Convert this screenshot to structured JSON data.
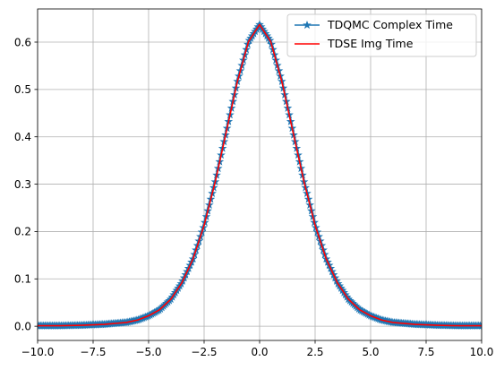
{
  "chart_data": {
    "type": "line",
    "title": "",
    "xlabel": "",
    "ylabel": "",
    "xlim": [
      -10,
      10
    ],
    "ylim": [
      -0.03,
      0.67
    ],
    "grid": true,
    "legend_position": "top-right",
    "x_ticks": [
      -10,
      -7.5,
      -5,
      -2.5,
      0,
      2.5,
      5,
      7.5,
      10
    ],
    "x_tick_labels": [
      "−10.0",
      "−7.5",
      "−5.0",
      "−2.5",
      "0.0",
      "2.5",
      "5.0",
      "7.5",
      "10.0"
    ],
    "y_ticks": [
      0,
      0.1,
      0.2,
      0.3,
      0.4,
      0.5,
      0.6
    ],
    "y_tick_labels": [
      "0.0",
      "0.1",
      "0.2",
      "0.3",
      "0.4",
      "0.5",
      "0.6"
    ],
    "series": [
      {
        "name": "TDQMC Complex Time",
        "color": "#1f77b4",
        "marker": "star",
        "x": [
          -10,
          -9,
          -8,
          -7,
          -6,
          -5.5,
          -5,
          -4.5,
          -4,
          -3.5,
          -3,
          -2.5,
          -2,
          -1.5,
          -1,
          -0.5,
          0,
          0.5,
          1,
          1.5,
          2,
          2.5,
          3,
          3.5,
          4,
          4.5,
          5,
          5.5,
          6,
          7,
          8,
          9,
          10
        ],
        "y": [
          0.001,
          0.001,
          0.002,
          0.004,
          0.008,
          0.013,
          0.022,
          0.035,
          0.057,
          0.092,
          0.142,
          0.213,
          0.305,
          0.411,
          0.517,
          0.601,
          0.637,
          0.601,
          0.517,
          0.411,
          0.305,
          0.213,
          0.142,
          0.092,
          0.057,
          0.035,
          0.022,
          0.013,
          0.008,
          0.004,
          0.002,
          0.001,
          0.001
        ]
      },
      {
        "name": "TDSE Img Time",
        "color": "#ff0000",
        "marker": "none",
        "x": [
          -10,
          -9,
          -8,
          -7,
          -6,
          -5.5,
          -5,
          -4.5,
          -4,
          -3.5,
          -3,
          -2.5,
          -2,
          -1.5,
          -1,
          -0.5,
          0,
          0.5,
          1,
          1.5,
          2,
          2.5,
          3,
          3.5,
          4,
          4.5,
          5,
          5.5,
          6,
          7,
          8,
          9,
          10
        ],
        "y": [
          0.001,
          0.001,
          0.002,
          0.004,
          0.008,
          0.013,
          0.022,
          0.035,
          0.057,
          0.092,
          0.142,
          0.213,
          0.305,
          0.411,
          0.517,
          0.601,
          0.637,
          0.601,
          0.517,
          0.411,
          0.305,
          0.213,
          0.142,
          0.092,
          0.057,
          0.035,
          0.022,
          0.013,
          0.008,
          0.004,
          0.002,
          0.001,
          0.001
        ]
      }
    ]
  }
}
